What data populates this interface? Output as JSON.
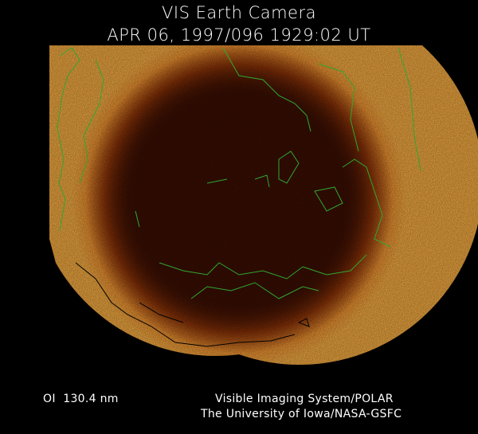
{
  "header": {
    "title": "VIS Earth Camera",
    "timestamp": "APR 06, 1997/096 1929:02 UT"
  },
  "footer": {
    "wavelength": "OI  130.4 nm",
    "instrument": "Visible Imaging System/POLAR",
    "institution": "The University of Iowa/NASA-GSFC"
  },
  "image": {
    "background_color": "#000000",
    "disk_color": "#3a0e02",
    "aurora_color": "#f0a030",
    "coastline_color": "#2fa82f",
    "night_coastline_color": "#000000"
  }
}
